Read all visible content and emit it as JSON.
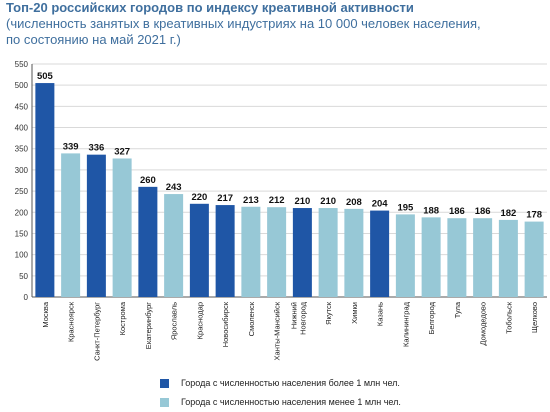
{
  "header": {
    "title": "Топ-20 российских городов по индексу креативной активности",
    "subtitle_line1": "(численность занятых в креативных индустриях на 10 000 человек населения,",
    "subtitle_line2": "по состоянию на май 2021 г.)"
  },
  "colors": {
    "large_city": "#1f56a6",
    "small_city": "#97c8d6",
    "grid": "#d9d9d9",
    "axis": "#555555"
  },
  "chart_data": {
    "type": "bar",
    "ylim": [
      0,
      550
    ],
    "yticks": [
      0,
      50,
      100,
      150,
      200,
      250,
      300,
      350,
      400,
      450,
      500,
      550
    ],
    "grid": true,
    "legend_position": "bottom",
    "series_names": {
      "large": "Города с численностью населения более 1 млн чел.",
      "small": "Города с численностью населения менее 1 млн чел."
    },
    "categories": [
      "Москва",
      "Красноярск",
      "Санкт-Петербург",
      "Кострома",
      "Екатеринбург",
      "Ярославль",
      "Краснодар",
      "Новосибирск",
      "Смоленск",
      "Ханты-Мансийск",
      "Нижний Новгород",
      "Якутск",
      "Химки",
      "Казань",
      "Калининград",
      "Белгород",
      "Тула",
      "Домодедово",
      "Тобольск",
      "Щелково"
    ],
    "values": [
      505,
      339,
      336,
      327,
      260,
      243,
      220,
      217,
      213,
      212,
      210,
      210,
      208,
      204,
      195,
      188,
      186,
      186,
      182,
      178
    ],
    "group": [
      "large",
      "small",
      "large",
      "small",
      "large",
      "small",
      "large",
      "large",
      "small",
      "small",
      "large",
      "small",
      "small",
      "large",
      "small",
      "small",
      "small",
      "small",
      "small",
      "small"
    ]
  }
}
